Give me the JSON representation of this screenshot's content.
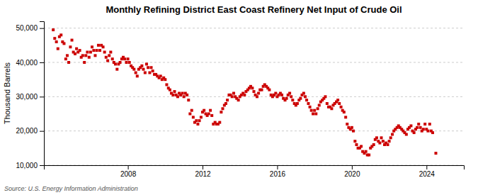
{
  "chart_data": {
    "type": "scatter",
    "title": "Monthly Refining District East Coast Refinery Net Input of Crude Oil",
    "ylabel": "Thousand Barrels",
    "source": "Source: U.S. Energy Information Administration",
    "color": "#cc0000",
    "marker": "square",
    "grid": true,
    "xlim": [
      2003.5,
      2026.0
    ],
    "xticks": [
      2008,
      2012,
      2016,
      2020,
      2024
    ],
    "ylim": [
      10000,
      52000
    ],
    "yticks": [
      {
        "value": 10000,
        "label": "10,000"
      },
      {
        "value": 20000,
        "label": "20,000"
      },
      {
        "value": 30000,
        "label": "30,000"
      },
      {
        "value": 40000,
        "label": "40,000"
      },
      {
        "value": 50000,
        "label": "50,000"
      }
    ],
    "x": [
      2004.0,
      2004.08,
      2004.17,
      2004.25,
      2004.33,
      2004.42,
      2004.5,
      2004.58,
      2004.67,
      2004.75,
      2004.83,
      2004.92,
      2005.0,
      2005.08,
      2005.17,
      2005.25,
      2005.33,
      2005.42,
      2005.5,
      2005.58,
      2005.67,
      2005.75,
      2005.83,
      2005.92,
      2006.0,
      2006.08,
      2006.17,
      2006.25,
      2006.33,
      2006.42,
      2006.5,
      2006.58,
      2006.67,
      2006.75,
      2006.83,
      2006.92,
      2007.0,
      2007.08,
      2007.17,
      2007.25,
      2007.33,
      2007.42,
      2007.5,
      2007.58,
      2007.67,
      2007.75,
      2007.83,
      2007.92,
      2008.0,
      2008.08,
      2008.17,
      2008.25,
      2008.33,
      2008.42,
      2008.5,
      2008.58,
      2008.67,
      2008.75,
      2008.83,
      2008.92,
      2009.0,
      2009.08,
      2009.17,
      2009.25,
      2009.33,
      2009.42,
      2009.5,
      2009.58,
      2009.67,
      2009.75,
      2009.83,
      2009.92,
      2010.0,
      2010.08,
      2010.17,
      2010.25,
      2010.33,
      2010.42,
      2010.5,
      2010.58,
      2010.67,
      2010.75,
      2010.83,
      2010.92,
      2011.0,
      2011.08,
      2011.17,
      2011.25,
      2011.33,
      2011.42,
      2011.5,
      2011.58,
      2011.67,
      2011.75,
      2011.83,
      2011.92,
      2012.0,
      2012.08,
      2012.17,
      2012.25,
      2012.33,
      2012.42,
      2012.5,
      2012.58,
      2012.67,
      2012.75,
      2012.83,
      2012.92,
      2013.0,
      2013.08,
      2013.17,
      2013.25,
      2013.33,
      2013.42,
      2013.5,
      2013.58,
      2013.67,
      2013.75,
      2013.83,
      2013.92,
      2014.0,
      2014.08,
      2014.17,
      2014.25,
      2014.33,
      2014.42,
      2014.5,
      2014.58,
      2014.67,
      2014.75,
      2014.83,
      2014.92,
      2015.0,
      2015.08,
      2015.17,
      2015.25,
      2015.33,
      2015.42,
      2015.5,
      2015.58,
      2015.67,
      2015.75,
      2015.83,
      2015.92,
      2016.0,
      2016.08,
      2016.17,
      2016.25,
      2016.33,
      2016.42,
      2016.5,
      2016.58,
      2016.67,
      2016.75,
      2016.83,
      2016.92,
      2017.0,
      2017.08,
      2017.17,
      2017.25,
      2017.33,
      2017.42,
      2017.5,
      2017.58,
      2017.67,
      2017.75,
      2017.83,
      2017.92,
      2018.0,
      2018.08,
      2018.17,
      2018.25,
      2018.33,
      2018.42,
      2018.5,
      2018.58,
      2018.67,
      2018.75,
      2018.83,
      2018.92,
      2019.0,
      2019.08,
      2019.17,
      2019.25,
      2019.33,
      2019.42,
      2019.5,
      2019.58,
      2019.67,
      2019.75,
      2019.83,
      2019.92,
      2020.0,
      2020.08,
      2020.17,
      2020.25,
      2020.33,
      2020.42,
      2020.5,
      2020.58,
      2020.67,
      2020.75,
      2020.83,
      2020.92,
      2021.0,
      2021.08,
      2021.17,
      2021.25,
      2021.33,
      2021.42,
      2021.5,
      2021.58,
      2021.67,
      2021.75,
      2021.83,
      2021.92,
      2022.0,
      2022.08,
      2022.17,
      2022.25,
      2022.33,
      2022.42,
      2022.5,
      2022.58,
      2022.67,
      2022.75,
      2022.83,
      2022.92,
      2023.0,
      2023.08,
      2023.17,
      2023.25,
      2023.33,
      2023.42,
      2023.5,
      2023.58,
      2023.67,
      2023.75,
      2023.83,
      2023.92,
      2024.0,
      2024.08,
      2024.17,
      2024.25,
      2024.33,
      2024.5
    ],
    "values": [
      49500,
      47000,
      46000,
      44000,
      47500,
      48000,
      46000,
      45500,
      41000,
      42000,
      40000,
      44500,
      46500,
      43000,
      42500,
      44000,
      43000,
      43500,
      41500,
      42000,
      40000,
      42000,
      43000,
      41500,
      43000,
      44500,
      43500,
      42000,
      43500,
      45000,
      43500,
      45000,
      44500,
      43000,
      41500,
      40500,
      42000,
      43000,
      41000,
      40000,
      39500,
      38000,
      39500,
      40000,
      41000,
      41500,
      41000,
      40000,
      41000,
      40000,
      39000,
      38500,
      38000,
      37000,
      36000,
      38000,
      38500,
      39000,
      38000,
      37000,
      39500,
      38500,
      37000,
      38500,
      37500,
      36500,
      36500,
      36000,
      35500,
      36000,
      35000,
      35500,
      35000,
      33500,
      32500,
      32000,
      31000,
      30500,
      31500,
      30500,
      30000,
      31000,
      30500,
      31000,
      30000,
      31000,
      30500,
      29000,
      25000,
      26000,
      24000,
      22500,
      23000,
      22000,
      23000,
      24000,
      25500,
      26000,
      25000,
      24500,
      25000,
      26000,
      24500,
      22000,
      22500,
      22000,
      22000,
      22500,
      25500,
      26500,
      27500,
      28000,
      29000,
      30500,
      30500,
      30000,
      31000,
      30000,
      29500,
      29000,
      30000,
      30500,
      31000,
      30500,
      31500,
      32000,
      32500,
      33000,
      32500,
      31500,
      30500,
      30000,
      31000,
      32000,
      32000,
      33000,
      33500,
      33000,
      32500,
      32000,
      30500,
      30000,
      30500,
      31000,
      30000,
      30500,
      31000,
      30500,
      29500,
      29000,
      29500,
      30500,
      31000,
      30000,
      29000,
      28000,
      27500,
      28000,
      29000,
      29500,
      30500,
      31000,
      30000,
      29000,
      28000,
      27000,
      26000,
      25000,
      26000,
      25000,
      26500,
      27500,
      28500,
      29000,
      29500,
      30000,
      28000,
      27000,
      27000,
      26500,
      27500,
      28000,
      28500,
      29000,
      28000,
      27000,
      26000,
      25500,
      24000,
      22000,
      21000,
      20500,
      21000,
      20000,
      17000,
      16000,
      15000,
      15000,
      15500,
      14000,
      13500,
      14000,
      13000,
      13000,
      15000,
      15500,
      16000,
      17500,
      18000,
      17000,
      16500,
      18000,
      17000,
      16000,
      16500,
      16000,
      17000,
      18000,
      19000,
      20000,
      20500,
      21000,
      21500,
      21000,
      20500,
      20000,
      19500,
      19000,
      20500,
      21000,
      21500,
      20000,
      19500,
      20500,
      21000,
      22000,
      21000,
      20000,
      20500,
      22000,
      20500,
      20000,
      22000,
      20000,
      19500,
      13500
    ]
  }
}
